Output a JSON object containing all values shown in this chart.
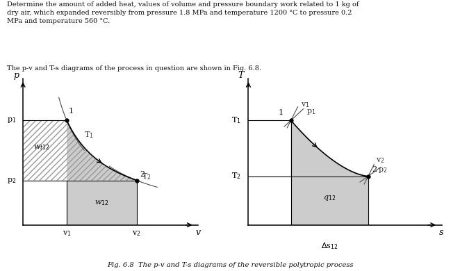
{
  "text_header": "Determine the amount of added heat, values of volume and pressure boundary work related to 1 kg of\ndry air, which expanded reversibly from pressure 1.8 MPa and temperature 1200 °C to pressure 0.2\nMPa and temperature 560 °C.",
  "text_subheader": "The p-v and T-s diagrams of the process in question are shown in Fig. 6.8.",
  "caption": "Fig. 6.8  The p-v and T-s diagrams of the reversible polytropic process",
  "bg_color": "#ffffff",
  "hatch_color": "#888888",
  "fill_color_light": "#cccccc",
  "pv": {
    "p1": 0.75,
    "p2": 0.32,
    "v1": 0.25,
    "v2": 0.65,
    "ymax": 1.0,
    "xmax": 1.0
  },
  "ts": {
    "T1": 0.75,
    "T2": 0.35,
    "s1": 0.22,
    "s2": 0.62,
    "ymax": 1.0,
    "xmax": 1.0
  }
}
